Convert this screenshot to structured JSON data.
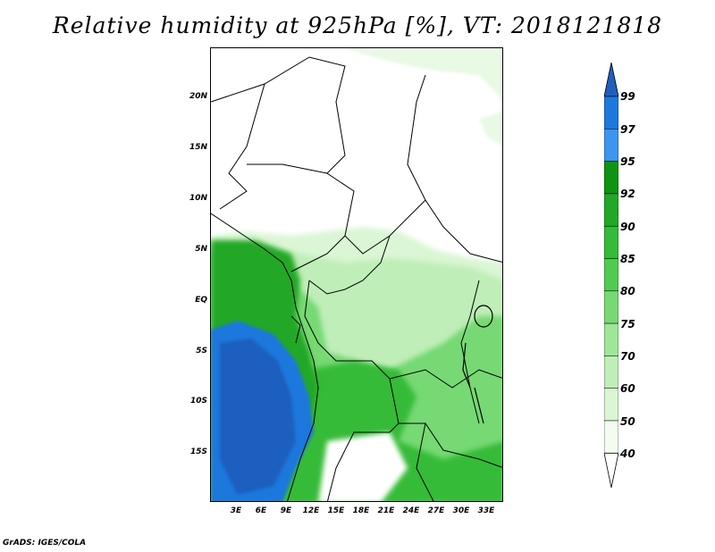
{
  "title": "Relative humidity at 925hPa [%], VT: 2018121818",
  "credit": "GrADS: IGES/COLA",
  "map": {
    "lat_labels": [
      "20N",
      "15N",
      "10N",
      "5N",
      "EQ",
      "5S",
      "10S",
      "15S"
    ],
    "lon_labels": [
      "3E",
      "6E",
      "9E",
      "12E",
      "15E",
      "18E",
      "21E",
      "24E",
      "27E",
      "30E",
      "33E"
    ],
    "lat_range": [
      -19.5,
      25
    ],
    "lon_range": [
      0,
      35
    ]
  },
  "colorbar": {
    "levels": [
      "99",
      "97",
      "95",
      "92",
      "90",
      "85",
      "80",
      "75",
      "70",
      "60",
      "50",
      "40"
    ],
    "colors": [
      "#1f5fbe",
      "#1e78dc",
      "#3c96ef",
      "#0d9412",
      "#20a826",
      "#34bb39",
      "#4fcc4f",
      "#76d973",
      "#9ee698",
      "#bfeeb8",
      "#daf6d4",
      "#f2fdf0",
      "#ffffff"
    ]
  }
}
